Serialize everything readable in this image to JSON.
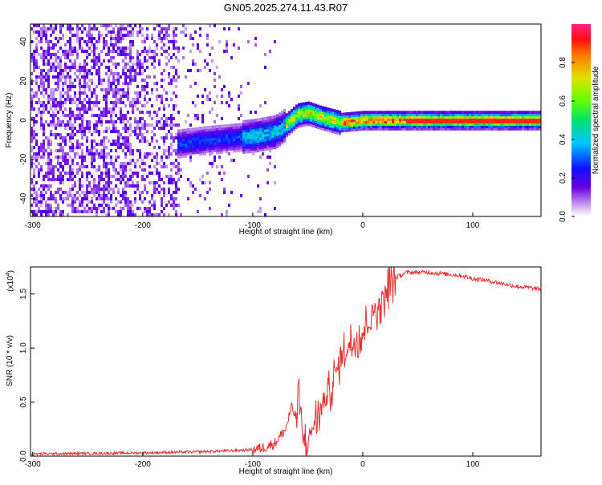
{
  "title": "GN05.2025.274.11.43.R07",
  "chart_data": [
    {
      "type": "heatmap",
      "title": "GN05.2025.274.11.43.R07",
      "xlabel": "Height of straight line (km)",
      "ylabel": "Frequency (Hz)",
      "xlim": [
        -302,
        162
      ],
      "ylim": [
        -49,
        49
      ],
      "x_ticks": [
        "-300",
        "-200",
        "-100",
        "0",
        "100"
      ],
      "y_ticks": [
        "40",
        "20",
        "0",
        "-20",
        "-40"
      ],
      "colorbar": {
        "label": "Normalized spectral amplitude",
        "range": [
          0.0,
          1.0
        ],
        "ticks": [
          "0.0",
          "0.2",
          "0.4",
          "0.6",
          "0.8"
        ]
      },
      "signal_track": {
        "description_points_height_km": [
          -170,
          -140,
          -120,
          -100,
          -80,
          -70,
          -60,
          -50,
          -40,
          -20,
          0,
          50,
          100,
          160
        ],
        "frequency_hz": [
          -12,
          -10,
          -9,
          -8,
          -6,
          -2,
          3,
          4,
          2,
          -1,
          0,
          0,
          0,
          0
        ],
        "noise_region_end_km": -170
      }
    },
    {
      "type": "line",
      "title": "",
      "xlabel": "Height of straight line (km)",
      "ylabel": "SNR (10 * v/v)",
      "y_multiplier": "(x10",
      "y_multiplier_exp": "4",
      "y_multiplier_close": ")",
      "xlim": [
        -302,
        162
      ],
      "ylim": [
        0.0,
        1.75
      ],
      "x_ticks": [
        "-300",
        "-200",
        "-100",
        "0",
        "100"
      ],
      "y_ticks": [
        "0.0",
        "0.5",
        "1.0",
        "1.5"
      ],
      "series": [
        {
          "name": "SNR",
          "color": "#e53030",
          "x": [
            -302,
            -200,
            -150,
            -120,
            -100,
            -90,
            -80,
            -70,
            -65,
            -60,
            -58,
            -55,
            -50,
            -45,
            -40,
            -35,
            -30,
            -25,
            -20,
            -15,
            -10,
            -5,
            0,
            5,
            10,
            15,
            20,
            25,
            30,
            40,
            50,
            60,
            70,
            80,
            90,
            100,
            110,
            120,
            130,
            140,
            150,
            162
          ],
          "values": [
            0.02,
            0.03,
            0.04,
            0.05,
            0.06,
            0.08,
            0.12,
            0.25,
            0.45,
            0.35,
            0.55,
            0.15,
            0.12,
            0.3,
            0.4,
            0.5,
            0.6,
            0.75,
            0.9,
            1.0,
            1.05,
            1.1,
            1.15,
            1.25,
            1.35,
            1.4,
            1.5,
            1.6,
            1.65,
            1.7,
            1.7,
            1.7,
            1.69,
            1.68,
            1.67,
            1.64,
            1.63,
            1.61,
            1.59,
            1.57,
            1.56,
            1.54
          ]
        }
      ]
    }
  ]
}
